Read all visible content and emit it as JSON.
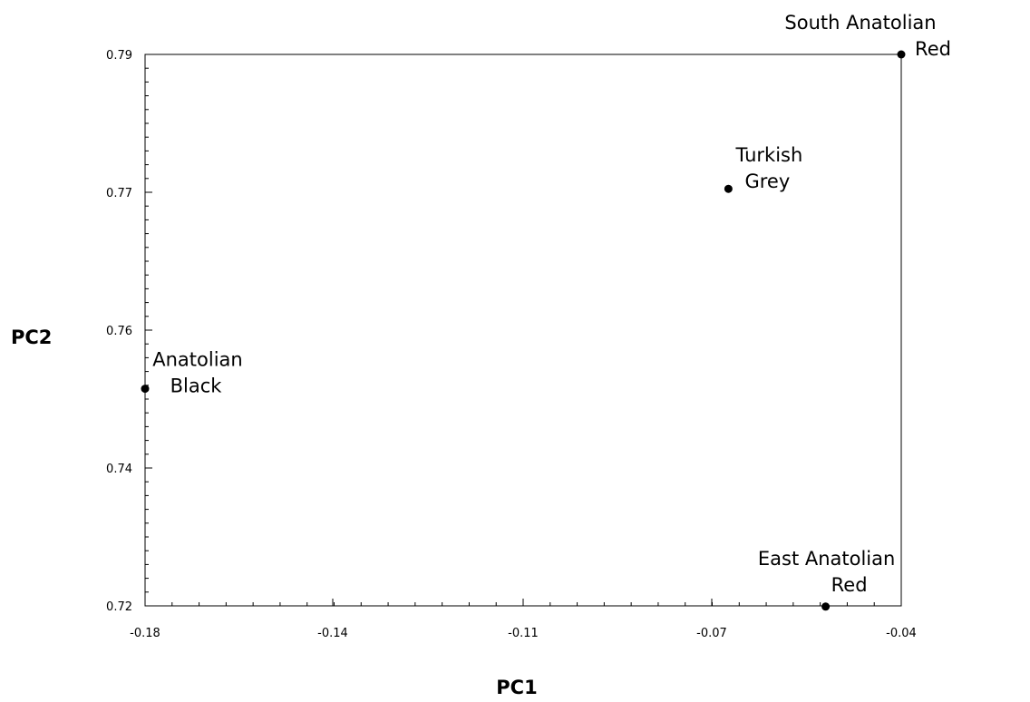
{
  "chart_data": {
    "type": "scatter",
    "title": "",
    "xlabel": "PC1",
    "ylabel": "PC2",
    "xlim": [
      -0.18,
      -0.04
    ],
    "ylim": [
      0.72,
      0.79
    ],
    "x_ticks": [
      -0.18,
      -0.14,
      -0.11,
      -0.07,
      -0.04
    ],
    "x_tick_labels": [
      "-0.18",
      "-0.14",
      "-0.11",
      "-0.07",
      "-0.04"
    ],
    "y_ticks": [
      0.72,
      0.74,
      0.76,
      0.77,
      0.79
    ],
    "y_tick_labels": [
      "0.72",
      "0.74",
      "0.76",
      "0.77",
      "0.79"
    ],
    "grid": false,
    "legend": false,
    "marker_color": "#000000",
    "points": [
      {
        "x": -0.04,
        "y": 0.79,
        "label_lines": [
          "South Anatolian",
          "Red"
        ]
      },
      {
        "x": -0.072,
        "y": 0.7705,
        "label_lines": [
          "Turkish",
          "Grey"
        ]
      },
      {
        "x": -0.18,
        "y": 0.7515,
        "label_lines": [
          "Anatolian",
          "Black"
        ]
      },
      {
        "x": -0.054,
        "y": 0.7199,
        "label_lines": [
          "East Anatolian",
          "Red"
        ]
      }
    ]
  }
}
